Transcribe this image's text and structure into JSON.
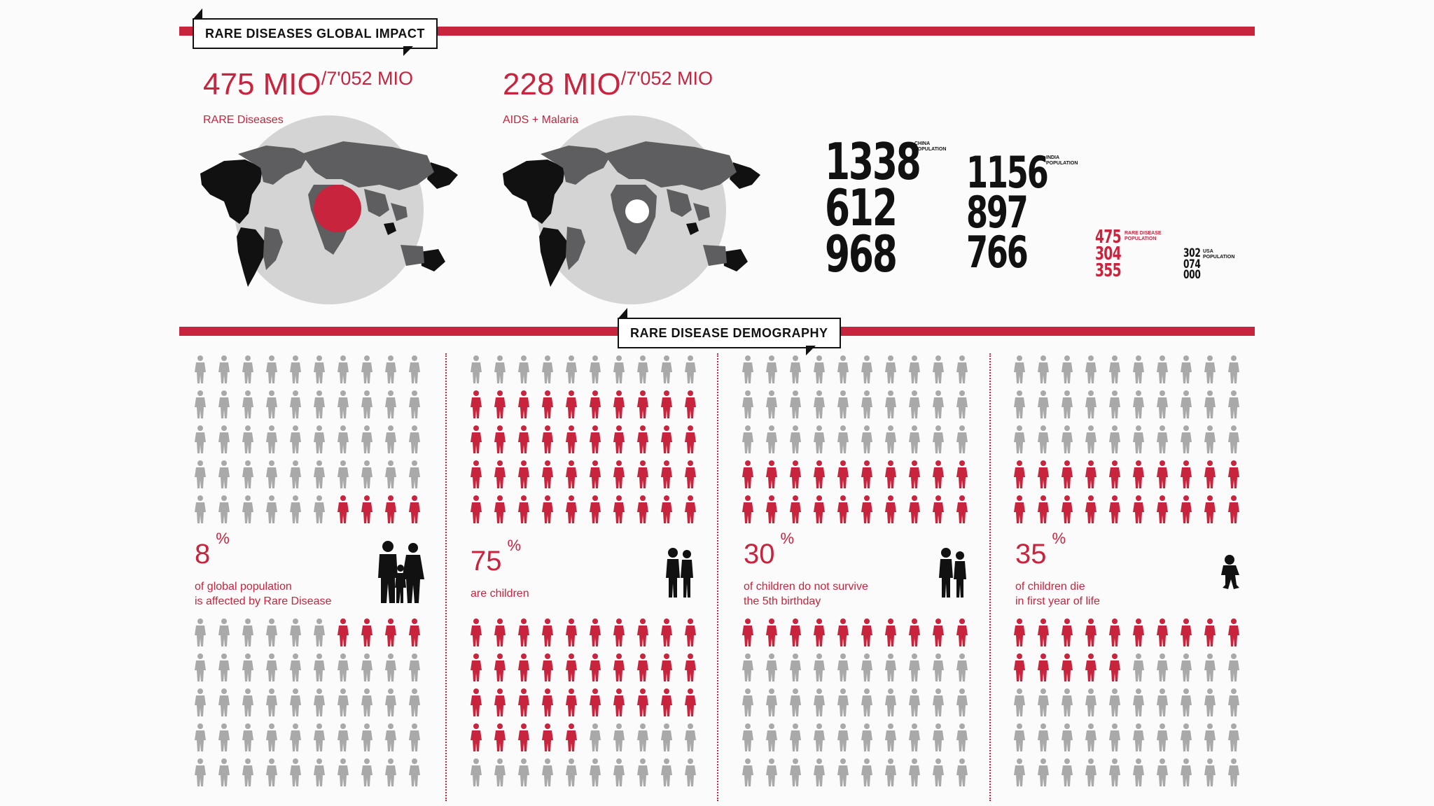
{
  "section1": {
    "title": "RARE DISEASES GLOBAL IMPACT"
  },
  "section2": {
    "title": "RARE DISEASE DEMOGRAPHY"
  },
  "impact": [
    {
      "value": "475 MIO",
      "total": "/7'052 MIO",
      "label": "RARE Diseases",
      "marker": "red"
    },
    {
      "value": "228 MIO",
      "total": "/7'052 MIO",
      "label": "AIDS + Malaria",
      "marker": "white"
    }
  ],
  "populations": [
    {
      "line1": "1338",
      "line2": "612",
      "line3": "968",
      "label1": "CHINA",
      "label2": "POPULATION",
      "color": "#111111"
    },
    {
      "line1": "1156",
      "line2": "897",
      "line3": "766",
      "label1": "INDIA",
      "label2": "POPULATION",
      "color": "#111111"
    },
    {
      "line1": "475",
      "line2": "304",
      "line3": "355",
      "label1": "RARE DISEASE",
      "label2": "POPULATION",
      "color": "#c8243d"
    },
    {
      "line1": "302",
      "line2": "074",
      "line3": "000",
      "label1": "USA",
      "label2": "POPULATION",
      "color": "#111111"
    }
  ],
  "demography": [
    {
      "percent": "8",
      "unit": "%",
      "line1": "of global population",
      "line2": "is affected by Rare Disease",
      "icon": "family-icon"
    },
    {
      "percent": "75",
      "unit": "%",
      "line1": "are children",
      "line2": "",
      "icon": "children-icon"
    },
    {
      "percent": "30",
      "unit": "%",
      "line1": "of children do not survive",
      "line2": "the 5th birthday",
      "icon": "child-pair-icon"
    },
    {
      "percent": "35",
      "unit": "%",
      "line1": "of children die",
      "line2": "in first year of life",
      "icon": "baby-icon"
    }
  ],
  "colors": {
    "accent": "#c8243d",
    "grey": "#a9a9a9",
    "dark": "#111111"
  },
  "chart_data": {
    "type": "table",
    "impact": [
      {
        "label": "RARE Diseases",
        "value_mio": 475,
        "total_mio": 7052
      },
      {
        "label": "AIDS + Malaria",
        "value_mio": 228,
        "total_mio": 7052
      }
    ],
    "population_numbers": [
      {
        "label": "CHINA POPULATION",
        "value": 1338612968
      },
      {
        "label": "INDIA POPULATION",
        "value": 1156897766
      },
      {
        "label": "RARE DISEASE POPULATION",
        "value": 475304355
      },
      {
        "label": "USA POPULATION",
        "value": 302074000
      }
    ],
    "pictographs": [
      {
        "percent": 8,
        "top": {
          "cols": 10,
          "rows": 5,
          "highlighted": 4
        },
        "bottom": {
          "cols": 10,
          "rows": 5,
          "highlighted": 4
        }
      },
      {
        "percent": 75,
        "top": {
          "cols": 10,
          "rows": 5,
          "highlighted": 40
        },
        "bottom": {
          "cols": 10,
          "rows": 5,
          "highlighted": 35
        }
      },
      {
        "percent": 30,
        "top": {
          "cols": 10,
          "rows": 5,
          "highlighted": 20
        },
        "bottom": {
          "cols": 10,
          "rows": 5,
          "highlighted": 10
        }
      },
      {
        "percent": 35,
        "top": {
          "cols": 10,
          "rows": 5,
          "highlighted": 20
        },
        "bottom": {
          "cols": 10,
          "rows": 5,
          "highlighted": 15
        }
      }
    ]
  }
}
